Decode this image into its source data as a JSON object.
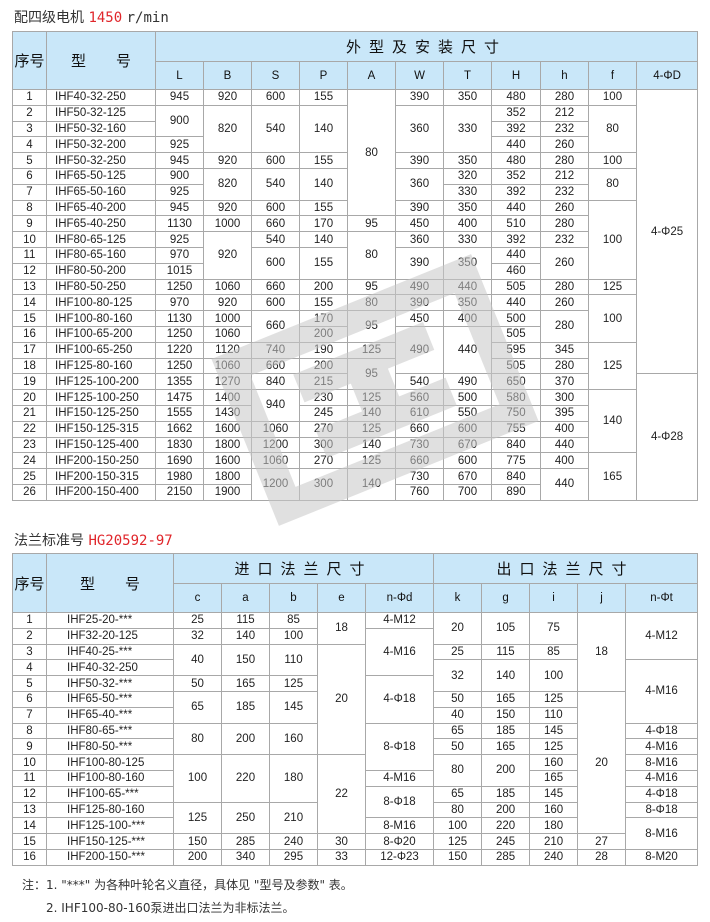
{
  "section1": {
    "title": "配四级电机",
    "speed": "1450",
    "unit": "r/min",
    "header": {
      "no": "序号",
      "model": "型　　号",
      "group": "外型及安装尺寸",
      "columns": [
        "L",
        "B",
        "S",
        "P",
        "A",
        "W",
        "T",
        "H",
        "h",
        "f",
        "4-ΦD"
      ]
    },
    "rows": [
      [
        "1",
        "IHF40-32-250",
        "945",
        "920",
        "600",
        "155",
        [
          "80",
          8
        ],
        "390",
        "350",
        "480",
        "280",
        "100",
        [
          "4-Φ25",
          18
        ]
      ],
      [
        "2",
        "IHF50-32-125",
        [
          "900",
          2
        ],
        [
          "820",
          3
        ],
        [
          "540",
          3
        ],
        [
          "140",
          3
        ],
        [
          "360",
          3
        ],
        [
          "330",
          3
        ],
        "352",
        "212",
        [
          "80",
          3
        ]
      ],
      [
        "3",
        "IHF50-32-160",
        "392",
        "232"
      ],
      [
        "4",
        "IHF50-32-200",
        "925",
        "440",
        "260"
      ],
      [
        "5",
        "IHF50-32-250",
        "945",
        "920",
        "600",
        "155",
        "390",
        "350",
        "480",
        "280",
        "100"
      ],
      [
        "6",
        "IHF65-50-125",
        "900",
        [
          "820",
          2
        ],
        [
          "540",
          2
        ],
        [
          "140",
          2
        ],
        [
          "360",
          2
        ],
        "320",
        "352",
        "212",
        [
          "80",
          2
        ]
      ],
      [
        "7",
        "IHF65-50-160",
        "925",
        "330",
        "392",
        "232"
      ],
      [
        "8",
        "IHF65-40-200",
        "945",
        "920",
        "600",
        "155",
        "390",
        "350",
        "440",
        "260",
        [
          "100",
          5
        ]
      ],
      [
        "9",
        "IHF65-40-250",
        "1130",
        "1000",
        "660",
        "170",
        "95",
        "450",
        "400",
        "510",
        "280"
      ],
      [
        "10",
        "IHF80-65-125",
        "925",
        [
          "920",
          3
        ],
        "540",
        "140",
        [
          "80",
          3
        ],
        "360",
        "330",
        "392",
        "232"
      ],
      [
        "11",
        "IHF80-65-160",
        "970",
        [
          "600",
          2
        ],
        [
          "155",
          2
        ],
        [
          "390",
          2
        ],
        [
          "350",
          2
        ],
        "440",
        [
          "260",
          2
        ]
      ],
      [
        "12",
        "IHF80-50-200",
        "1015",
        "460"
      ],
      [
        "13",
        "IHF80-50-250",
        "1250",
        "1060",
        "660",
        "200",
        "95",
        "490",
        "440",
        "505",
        "280",
        "125"
      ],
      [
        "14",
        "IHF100-80-125",
        "970",
        "920",
        "600",
        "155",
        "80",
        "390",
        "350",
        "440",
        "260",
        [
          "100",
          3
        ]
      ],
      [
        "15",
        "IHF100-80-160",
        "1130",
        "1000",
        [
          "660",
          2
        ],
        "170",
        [
          "95",
          2
        ],
        "450",
        "400",
        "500",
        [
          "280",
          2
        ]
      ],
      [
        "16",
        "IHF100-65-200",
        "1250",
        "1060",
        "200",
        [
          "490",
          3
        ],
        [
          "440",
          3
        ],
        "505"
      ],
      [
        "17",
        "IHF100-65-250",
        "1220",
        "1120",
        "740",
        "190",
        "125",
        "595",
        "345",
        [
          "125",
          3
        ]
      ],
      [
        "18",
        "IHF125-80-160",
        "1250",
        "1060",
        "660",
        "200",
        [
          "95",
          2
        ],
        "505",
        "280"
      ],
      [
        "19",
        "IHF125-100-200",
        "1355",
        "1270",
        "840",
        "215",
        "540",
        "490",
        "650",
        "370",
        [
          "4-Φ28",
          8
        ]
      ],
      [
        "20",
        "IHF125-100-250",
        "1475",
        "1400",
        [
          "940",
          2
        ],
        "230",
        "125",
        "560",
        "500",
        "580",
        "300",
        [
          "140",
          4
        ]
      ],
      [
        "21",
        "IHF150-125-250",
        "1555",
        "1430",
        "245",
        "140",
        "610",
        "550",
        "750",
        "395"
      ],
      [
        "22",
        "IHF150-125-315",
        "1662",
        "1600",
        "1060",
        "270",
        "125",
        "660",
        "600",
        "755",
        "400"
      ],
      [
        "23",
        "IHF150-125-400",
        "1830",
        "1800",
        "1200",
        "300",
        "140",
        "730",
        "670",
        "840",
        "440"
      ],
      [
        "24",
        "IHF200-150-250",
        "1690",
        "1600",
        "1060",
        "270",
        "125",
        "660",
        "600",
        "775",
        "400",
        [
          "165",
          3
        ]
      ],
      [
        "25",
        "IHF200-150-315",
        "1980",
        "1800",
        [
          "1200",
          2
        ],
        [
          "300",
          2
        ],
        [
          "140",
          2
        ],
        "730",
        "670",
        "840",
        [
          "440",
          2
        ]
      ],
      [
        "26",
        "IHF200-150-400",
        "2150",
        "1900",
        "760",
        "700",
        "890"
      ]
    ]
  },
  "section2": {
    "title": "法兰标准号",
    "standard": "HG20592-97",
    "header": {
      "no": "序号",
      "model": "型　　号",
      "group_in": "进口法兰尺寸",
      "group_out": "出口法兰尺寸",
      "columns": [
        "c",
        "a",
        "b",
        "e",
        "n-Φd",
        "k",
        "g",
        "i",
        "j",
        "n-Φt"
      ]
    },
    "rows": [
      [
        "1",
        "IHF25-20-***",
        "25",
        "115",
        "85",
        [
          "18",
          2
        ],
        "4-M12",
        [
          "20",
          2
        ],
        [
          "105",
          2
        ],
        [
          "75",
          2
        ],
        [
          "18",
          5
        ],
        [
          "4-M12",
          3
        ]
      ],
      [
        "2",
        "IHF32-20-125",
        "32",
        "140",
        "100",
        [
          "4-M16",
          3
        ]
      ],
      [
        "3",
        "IHF40-25-***",
        [
          "40",
          2
        ],
        [
          "150",
          2
        ],
        [
          "110",
          2
        ],
        [
          "20",
          7
        ],
        "25",
        "115",
        "85"
      ],
      [
        "4",
        "IHF40-32-250",
        [
          "32",
          2
        ],
        [
          "140",
          2
        ],
        [
          "100",
          2
        ],
        [
          "4-M16",
          4
        ]
      ],
      [
        "5",
        "IHF50-32-***",
        "50",
        "165",
        "125",
        [
          "4-Φ18",
          3
        ]
      ],
      [
        "6",
        "IHF65-50-***",
        [
          "65",
          2
        ],
        [
          "185",
          2
        ],
        [
          "145",
          2
        ],
        "50",
        "165",
        "125",
        [
          "20",
          9
        ]
      ],
      [
        "7",
        "IHF65-40-***",
        "40",
        "150",
        "110"
      ],
      [
        "8",
        "IHF80-65-***",
        [
          "80",
          2
        ],
        [
          "200",
          2
        ],
        [
          "160",
          2
        ],
        [
          "8-Φ18",
          3
        ],
        "65",
        "185",
        "145",
        "4-Φ18"
      ],
      [
        "9",
        "IHF80-50-***",
        "50",
        "165",
        "125",
        "4-M16"
      ],
      [
        "10",
        "IHF100-80-125",
        [
          "100",
          3
        ],
        [
          "220",
          3
        ],
        [
          "180",
          3
        ],
        [
          "22",
          5
        ],
        [
          "80",
          2
        ],
        [
          "200",
          2
        ],
        "160",
        "8-M16"
      ],
      [
        "11",
        "IHF100-80-160",
        "4-M16",
        "165",
        "4-M16"
      ],
      [
        "12",
        "IHF100-65-***",
        [
          "8-Φ18",
          2
        ],
        "65",
        "185",
        "145",
        "4-Φ18"
      ],
      [
        "13",
        "IHF125-80-160",
        [
          "125",
          2
        ],
        [
          "250",
          2
        ],
        [
          "210",
          2
        ],
        "80",
        "200",
        "160",
        "8-Φ18"
      ],
      [
        "14",
        "IHF125-100-***",
        "8-M16",
        "100",
        "220",
        "180",
        [
          "8-M16",
          2
        ]
      ],
      [
        "15",
        "IHF150-125-***",
        "150",
        "285",
        "240",
        "30",
        "8-Φ20",
        "125",
        "245",
        "210",
        "27"
      ],
      [
        "16",
        "IHF200-150-***",
        "200",
        "340",
        "295",
        "33",
        "12-Φ23",
        "150",
        "285",
        "240",
        "28",
        "8-M20"
      ]
    ]
  },
  "notes": [
    "注：1. \"***\" 为各种叶轮名义直径，具体见 \"型号及参数\" 表。",
    "2. IHF100-80-160泵进出口法兰为非标法兰。"
  ],
  "colors": {
    "header_bg": "#c9e7f9",
    "accent_red": "#e0262b",
    "border": "#a8a8a8",
    "watermark": "#c8c8c8"
  }
}
